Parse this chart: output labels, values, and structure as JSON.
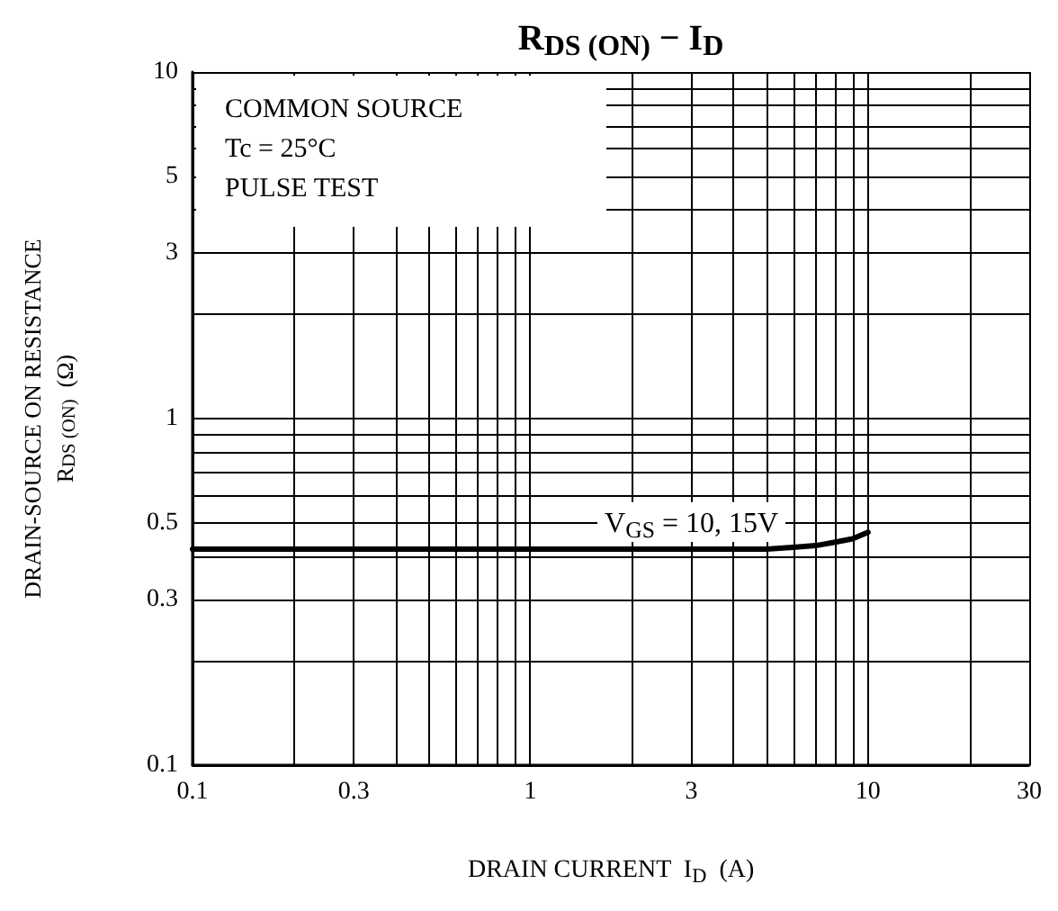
{
  "chart_data": {
    "type": "line",
    "title": "R$_{DS (ON)}$ − I$_{D}$",
    "xlabel": "DRAIN CURRENT  I$_{D}$  (A)",
    "ylabel": "DRAIN-SOURCE ON RESISTANCE\nR$_{DS (ON)}$  (Ω)",
    "x": [
      0.1,
      0.3,
      1,
      3,
      5,
      6,
      7,
      8,
      9,
      10
    ],
    "series": [
      {
        "name": "V$_{GS}$ = 10, 15V",
        "color": "#000000",
        "values": [
          0.42,
          0.42,
          0.42,
          0.42,
          0.42,
          0.425,
          0.43,
          0.44,
          0.45,
          0.47
        ]
      }
    ],
    "log": "xy",
    "xlim": [
      0.1,
      30
    ],
    "ylim": [
      0.1,
      10
    ],
    "xticks": [
      0.1,
      {
        "value": 0.2,
        "label": null
      },
      0.3,
      {
        "value": 0.4,
        "label": null
      },
      {
        "value": 0.5,
        "label": null
      },
      {
        "value": 0.6,
        "label": null
      },
      {
        "value": 0.7,
        "label": null
      },
      {
        "value": 0.8,
        "label": null
      },
      {
        "value": 0.9,
        "label": null
      },
      1,
      {
        "value": 2,
        "label": null
      },
      3,
      {
        "value": 4,
        "label": null
      },
      {
        "value": 5,
        "label": null
      },
      {
        "value": 6,
        "label": null
      },
      {
        "value": 7,
        "label": null
      },
      {
        "value": 8,
        "label": null
      },
      {
        "value": 9,
        "label": null
      },
      10,
      {
        "value": 20,
        "label": null
      },
      30
    ],
    "yticks": [
      0.1,
      {
        "value": 0.2,
        "label": null
      },
      0.3,
      {
        "value": 0.4,
        "label": null
      },
      0.5,
      {
        "value": 0.6,
        "label": null
      },
      {
        "value": 0.7,
        "label": null
      },
      {
        "value": 0.8,
        "label": null
      },
      {
        "value": 0.9,
        "label": null
      },
      1,
      {
        "value": 2,
        "label": null
      },
      3,
      {
        "value": 4,
        "label": null
      },
      5,
      {
        "value": 6,
        "label": null
      },
      {
        "value": 7,
        "label": null
      },
      {
        "value": 8,
        "label": null
      },
      {
        "value": 9,
        "label": null
      },
      10
    ],
    "grid": true,
    "marker": "none",
    "line_style": "solid",
    "annotations": [
      "COMMON SOURCE",
      "Tc = 25°C",
      "PULSE TEST"
    ]
  }
}
